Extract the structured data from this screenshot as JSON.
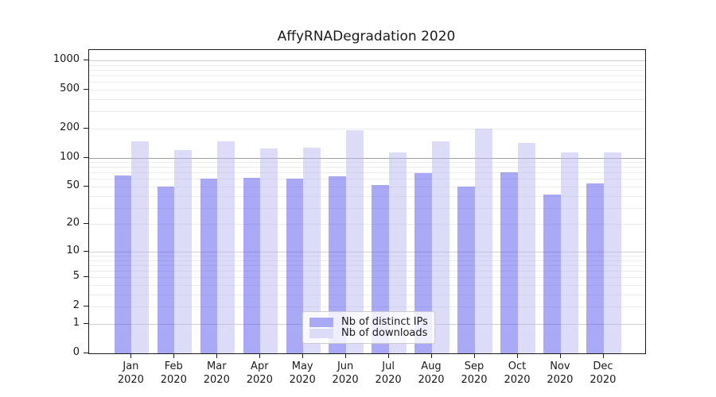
{
  "figure": {
    "background": "#ffffff"
  },
  "chart_data": {
    "type": "bar",
    "title": "AffyRNADegradation 2020",
    "x": [
      {
        "month": "Jan",
        "year": "2020"
      },
      {
        "month": "Feb",
        "year": "2020"
      },
      {
        "month": "Mar",
        "year": "2020"
      },
      {
        "month": "Apr",
        "year": "2020"
      },
      {
        "month": "May",
        "year": "2020"
      },
      {
        "month": "Jun",
        "year": "2020"
      },
      {
        "month": "Jul",
        "year": "2020"
      },
      {
        "month": "Aug",
        "year": "2020"
      },
      {
        "month": "Sep",
        "year": "2020"
      },
      {
        "month": "Oct",
        "year": "2020"
      },
      {
        "month": "Nov",
        "year": "2020"
      },
      {
        "month": "Dec",
        "year": "2020"
      }
    ],
    "series": [
      {
        "name": "Nb of distinct IPs",
        "color": "#aaa9f5",
        "bar_color": "rgba(85,84,238,0.5)",
        "values": [
          65,
          50,
          61,
          62,
          60,
          64,
          52,
          69,
          50,
          70,
          41,
          54
        ]
      },
      {
        "name": "Nb of downloads",
        "color": "#dcdbf8",
        "bar_color": "rgba(186,183,242,0.5)",
        "values": [
          148,
          120,
          148,
          125,
          127,
          191,
          114,
          147,
          200,
          142,
          113,
          114
        ]
      }
    ],
    "y_axis": {
      "scale": "log1p",
      "ticks": [
        0,
        1,
        2,
        5,
        10,
        20,
        50,
        100,
        200,
        500,
        1000
      ],
      "range": [
        0,
        1000
      ]
    },
    "grid": {
      "minor_values": [
        2,
        3,
        4,
        5,
        6,
        7,
        8,
        9,
        20,
        30,
        40,
        50,
        60,
        70,
        80,
        90,
        200,
        300,
        400,
        500,
        600,
        700,
        800,
        900
      ],
      "major_values": [
        1,
        10,
        1000
      ],
      "emphasis_values": [
        100
      ],
      "minor_color": "#ececec",
      "major_color": "#cfcfcf",
      "emphasis_color": "#a0a0a0"
    },
    "legend": {
      "position": "lower center inside"
    }
  }
}
